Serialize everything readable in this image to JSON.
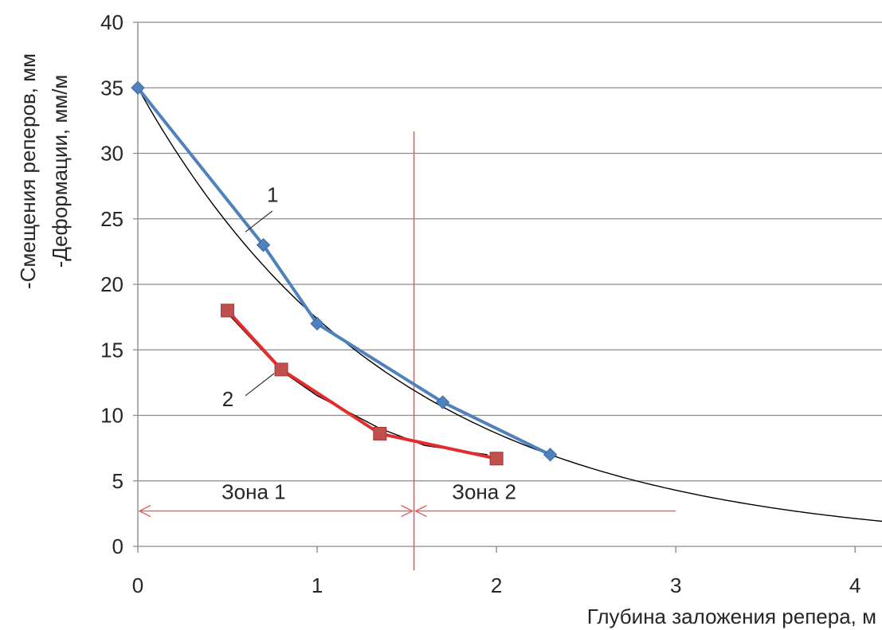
{
  "chart_data": {
    "type": "line",
    "xlabel": "Глубина заложения репера, м",
    "ylabel_line1": "-Смещения реперов, мм",
    "ylabel_line2": "-Деформации, мм/м",
    "xlim": [
      0,
      4.15
    ],
    "ylim": [
      0,
      40
    ],
    "x_ticks": [
      "0",
      "1",
      "2",
      "3",
      "4"
    ],
    "y_ticks": [
      "0",
      "5",
      "10",
      "15",
      "20",
      "25",
      "30",
      "35",
      "40"
    ],
    "grid": "horizontal",
    "series": [
      {
        "name": "1",
        "color": "#4f81bd",
        "marker": "diamond",
        "x": [
          0,
          0.7,
          1.0,
          1.7,
          2.3
        ],
        "y": [
          35,
          23,
          17,
          11,
          7
        ]
      },
      {
        "name": "2",
        "color": "#e32d2d",
        "marker": "square",
        "x": [
          0.5,
          0.8,
          1.35,
          2.0
        ],
        "y": [
          18,
          13.5,
          8.6,
          6.7
        ]
      }
    ],
    "trendlines": [
      {
        "series": "1",
        "type": "exponential",
        "color": "#000000",
        "a": 35,
        "b": -0.7,
        "x_range": [
          0,
          4.15
        ]
      },
      {
        "series": "2",
        "type": "exponential",
        "color": "#000000",
        "x_range": [
          0.5,
          1.95
        ],
        "x": [
          0.5,
          0.8,
          1.0,
          1.35,
          1.6,
          1.95
        ],
        "y": [
          17.8,
          13.4,
          11.5,
          9.0,
          7.7,
          7.0
        ]
      }
    ],
    "annotations": {
      "zone_divider_x": 1.54,
      "zone_arrow_y": 2.7,
      "zone_arrow_end_x": 3.0,
      "zone_color": "#e06060",
      "zone1_label": "Зона 1",
      "zone2_label": "Зона 2",
      "label_1": "1",
      "label_2": "2"
    }
  }
}
